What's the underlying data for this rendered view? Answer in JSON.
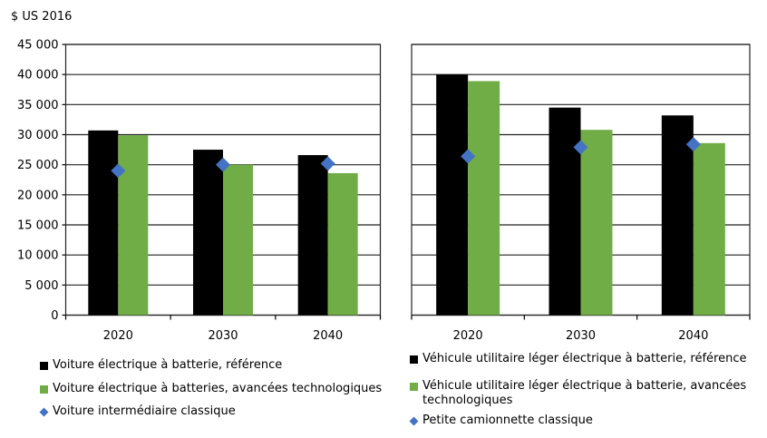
{
  "chart_data": [
    {
      "type": "bar",
      "ylabel": "$ US 2016",
      "ylim": [
        0,
        45000
      ],
      "yticks": [
        "0",
        "5 000",
        "10 000",
        "15 000",
        "20 000",
        "25 000",
        "30 000",
        "35 000",
        "40 000",
        "45 000"
      ],
      "grid": true,
      "categories": [
        "2020",
        "2030",
        "2040"
      ],
      "series": [
        {
          "name": "Voiture électrique à batterie, référence",
          "kind": "bar",
          "color": "#000000",
          "values": [
            30700,
            27500,
            26600
          ]
        },
        {
          "name": "Voiture électrique à batteries, avancées technologiques",
          "kind": "bar",
          "color": "#70AD47",
          "values": [
            29900,
            25000,
            23600
          ]
        },
        {
          "name": "Voiture intermédiaire classique",
          "kind": "marker",
          "marker": "diamond",
          "color": "#4472C4",
          "values": [
            24000,
            25000,
            25200
          ]
        }
      ],
      "legend": "bottom"
    },
    {
      "type": "bar",
      "ylim": [
        0,
        45000
      ],
      "grid": true,
      "categories": [
        "2020",
        "2030",
        "2040"
      ],
      "series": [
        {
          "name": "Véhicule utilitaire léger électrique à batterie, référence",
          "kind": "bar",
          "color": "#000000",
          "values": [
            40000,
            34500,
            33200
          ]
        },
        {
          "name": "Véhicule utilitaire léger électrique à batterie, avancées technologiques",
          "kind": "bar",
          "color": "#70AD47",
          "values": [
            38900,
            30800,
            28600
          ]
        },
        {
          "name": "Petite camionnette classique",
          "kind": "marker",
          "marker": "diamond",
          "color": "#4472C4",
          "values": [
            26400,
            27900,
            28400
          ]
        }
      ],
      "legend": "bottom"
    }
  ]
}
